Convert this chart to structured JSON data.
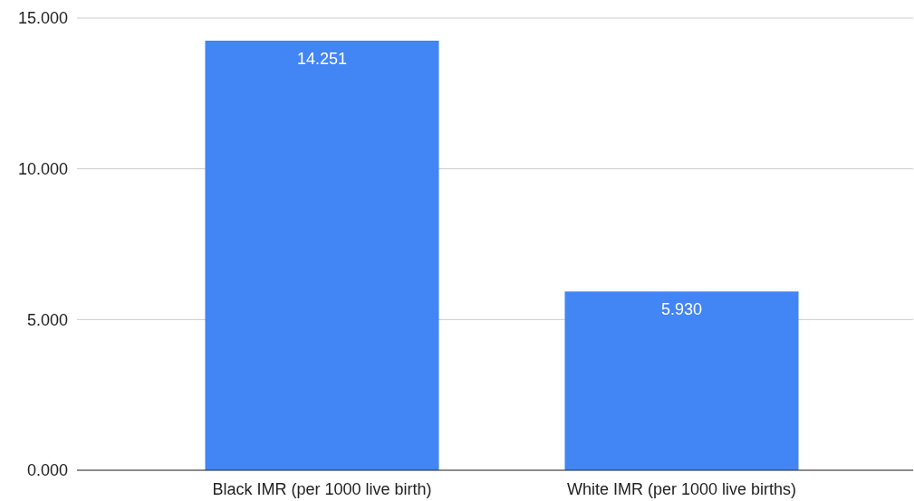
{
  "chart_data": {
    "type": "bar",
    "categories": [
      "Black IMR (per 1000 live birth)",
      "White IMR (per 1000 live births)"
    ],
    "values": [
      14.251,
      5.93
    ],
    "value_labels": [
      "14.251",
      "5.930"
    ],
    "color": "#4285f4",
    "ylim": [
      0,
      15
    ],
    "yticks": [
      {
        "value": 0,
        "label": "0.000"
      },
      {
        "value": 5,
        "label": "5.000"
      },
      {
        "value": 10,
        "label": "10.000"
      },
      {
        "value": 15,
        "label": "15.000"
      }
    ],
    "grid": "y"
  }
}
